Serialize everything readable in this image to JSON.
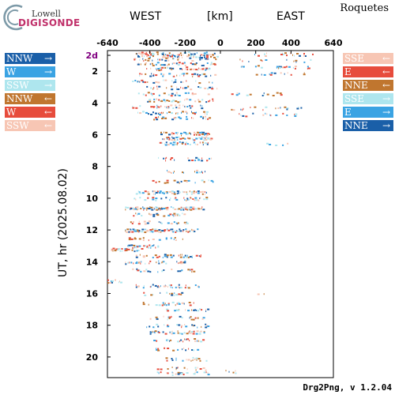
{
  "brand": {
    "line1": "Lowell",
    "line2": "DIGISONDE"
  },
  "station": "Roquetes",
  "header": {
    "west": "WEST",
    "unit": "[km]",
    "east": "EAST"
  },
  "footer": "Drg2Png, v 1.2.04",
  "legend_left": [
    {
      "label": "NNW",
      "arrow": "→",
      "color": "#1a5fa8",
      "text_color": "#ffffff"
    },
    {
      "label": "W",
      "arrow": "→",
      "color": "#3aa3e3",
      "text_color": "#ffffff"
    },
    {
      "label": "SSW",
      "arrow": "→",
      "color": "#aee6ee",
      "text_color": "#ffffff"
    },
    {
      "label": "NNW",
      "arrow": "←",
      "color": "#c0762f",
      "text_color": "#ffffff"
    },
    {
      "label": "W",
      "arrow": "←",
      "color": "#e74c3c",
      "text_color": "#ffffff"
    },
    {
      "label": "SSW",
      "arrow": "←",
      "color": "#f7c6b4",
      "text_color": "#ffffff"
    }
  ],
  "legend_right": [
    {
      "label": "SSE",
      "arrow": "←",
      "color": "#f7c6b4",
      "text_color": "#ffffff"
    },
    {
      "label": "E",
      "arrow": "←",
      "color": "#e74c3c",
      "text_color": "#ffffff"
    },
    {
      "label": "NNE",
      "arrow": "←",
      "color": "#c0762f",
      "text_color": "#ffffff"
    },
    {
      "label": "SSE",
      "arrow": "→",
      "color": "#aee6ee",
      "text_color": "#ffffff"
    },
    {
      "label": "E",
      "arrow": "→",
      "color": "#3aa3e3",
      "text_color": "#ffffff"
    },
    {
      "label": "NNE",
      "arrow": "→",
      "color": "#1a5fa8",
      "text_color": "#ffffff"
    }
  ],
  "chart_data": {
    "type": "scatter",
    "xlabel": "[km]",
    "ylabel": "UT, hr (2025.08.02)",
    "xlim": [
      -640,
      640
    ],
    "ylim": [
      0.7,
      21.3
    ],
    "xticks": [
      -640,
      -400,
      -200,
      0,
      200,
      400,
      640
    ],
    "xtick_labels": [
      "-640",
      "-400",
      "-200",
      "0",
      "200",
      "400",
      "640"
    ],
    "yticks": [
      1,
      2,
      4,
      6,
      8,
      10,
      12,
      14,
      16,
      18,
      20
    ],
    "ytick_labels": [
      "2d",
      "2",
      "4",
      "6",
      "8",
      "10",
      "12",
      "14",
      "16",
      "18",
      "20"
    ],
    "first_ytick_color": "#800080",
    "grid": false,
    "colors": [
      "#1a5fa8",
      "#3aa3e3",
      "#aee6ee",
      "#c0762f",
      "#e74c3c",
      "#f7c6b4"
    ],
    "bands": [
      {
        "t": 0.85,
        "x0": -480,
        "x1": -30,
        "density": 0.5
      },
      {
        "t": 1.0,
        "x0": -470,
        "x1": -10,
        "density": 0.55
      },
      {
        "t": 1.2,
        "x0": -500,
        "x1": -20,
        "density": 0.35
      },
      {
        "t": 1.5,
        "x0": -480,
        "x1": -30,
        "density": 0.4
      },
      {
        "t": 1.8,
        "x0": -420,
        "x1": -60,
        "density": 0.45
      },
      {
        "t": 2.2,
        "x0": -460,
        "x1": -20,
        "density": 0.35
      },
      {
        "t": 2.6,
        "x0": -500,
        "x1": -40,
        "density": 0.3
      },
      {
        "t": 3.0,
        "x0": -420,
        "x1": -20,
        "density": 0.35
      },
      {
        "t": 3.4,
        "x0": -480,
        "x1": -60,
        "density": 0.35
      },
      {
        "t": 3.8,
        "x0": -460,
        "x1": -30,
        "density": 0.35
      },
      {
        "t": 4.2,
        "x0": -500,
        "x1": -100,
        "density": 0.35
      },
      {
        "t": 4.6,
        "x0": -470,
        "x1": -60,
        "density": 0.5
      },
      {
        "t": 4.9,
        "x0": -380,
        "x1": -60,
        "density": 0.45
      },
      {
        "t": 5.9,
        "x0": -340,
        "x1": -40,
        "density": 0.7
      },
      {
        "t": 6.2,
        "x0": -330,
        "x1": -50,
        "density": 0.7
      },
      {
        "t": 6.5,
        "x0": -350,
        "x1": -70,
        "density": 0.4
      },
      {
        "t": 7.5,
        "x0": -380,
        "x1": -40,
        "density": 0.4
      },
      {
        "t": 8.3,
        "x0": -340,
        "x1": -60,
        "density": 0.3
      },
      {
        "t": 8.9,
        "x0": -400,
        "x1": -40,
        "density": 0.3
      },
      {
        "t": 9.6,
        "x0": -480,
        "x1": -80,
        "density": 0.7
      },
      {
        "t": 10.0,
        "x0": -500,
        "x1": -60,
        "density": 0.4
      },
      {
        "t": 10.6,
        "x0": -540,
        "x1": -100,
        "density": 0.9
      },
      {
        "t": 11.0,
        "x0": -500,
        "x1": -200,
        "density": 0.5
      },
      {
        "t": 11.5,
        "x0": -520,
        "x1": -180,
        "density": 0.4
      },
      {
        "t": 12.0,
        "x0": -540,
        "x1": -120,
        "density": 0.75
      },
      {
        "t": 12.5,
        "x0": -520,
        "x1": -200,
        "density": 0.4
      },
      {
        "t": 13.0,
        "x0": -540,
        "x1": -350,
        "density": 0.6
      },
      {
        "t": 13.2,
        "x0": -620,
        "x1": -440,
        "density": 0.7
      },
      {
        "t": 13.6,
        "x0": -480,
        "x1": -100,
        "density": 0.5
      },
      {
        "t": 14.0,
        "x0": -540,
        "x1": -200,
        "density": 0.45
      },
      {
        "t": 14.5,
        "x0": -500,
        "x1": -150,
        "density": 0.4
      },
      {
        "t": 15.2,
        "x0": -640,
        "x1": -560,
        "density": 0.7
      },
      {
        "t": 15.5,
        "x0": -480,
        "x1": -120,
        "density": 0.4
      },
      {
        "t": 16.0,
        "x0": -460,
        "x1": -200,
        "density": 0.35
      },
      {
        "t": 16.6,
        "x0": -440,
        "x1": -140,
        "density": 0.35
      },
      {
        "t": 17.0,
        "x0": -380,
        "x1": -60,
        "density": 0.3
      },
      {
        "t": 17.5,
        "x0": -400,
        "x1": -100,
        "density": 0.3
      },
      {
        "t": 18.0,
        "x0": -420,
        "x1": -60,
        "density": 0.45
      },
      {
        "t": 18.4,
        "x0": -400,
        "x1": -80,
        "density": 0.6
      },
      {
        "t": 18.9,
        "x0": -380,
        "x1": -100,
        "density": 0.35
      },
      {
        "t": 19.5,
        "x0": -380,
        "x1": -120,
        "density": 0.35
      },
      {
        "t": 20.1,
        "x0": -320,
        "x1": -80,
        "density": 0.35
      },
      {
        "t": 20.7,
        "x0": -360,
        "x1": -80,
        "density": 0.3
      },
      {
        "t": 21.0,
        "x0": -400,
        "x1": -60,
        "density": 0.25
      },
      {
        "t": 0.9,
        "x0": 170,
        "x1": 520,
        "density": 0.25
      },
      {
        "t": 1.3,
        "x0": 60,
        "x1": 520,
        "density": 0.2
      },
      {
        "t": 1.7,
        "x0": 80,
        "x1": 500,
        "density": 0.25
      },
      {
        "t": 2.1,
        "x0": 200,
        "x1": 480,
        "density": 0.2
      },
      {
        "t": 3.4,
        "x0": 30,
        "x1": 420,
        "density": 0.25
      },
      {
        "t": 4.3,
        "x0": 60,
        "x1": 460,
        "density": 0.2
      },
      {
        "t": 4.7,
        "x0": 100,
        "x1": 480,
        "density": 0.25
      },
      {
        "t": 6.6,
        "x0": 260,
        "x1": 380,
        "density": 0.2
      },
      {
        "t": 16.0,
        "x0": 200,
        "x1": 300,
        "density": 0.15
      },
      {
        "t": 20.9,
        "x0": 20,
        "x1": 200,
        "density": 0.15
      }
    ]
  }
}
